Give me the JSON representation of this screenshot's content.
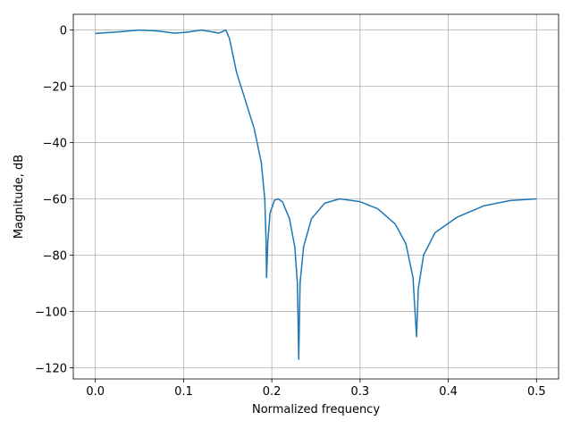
{
  "chart_data": {
    "type": "line",
    "xlabel": "Normalized frequency",
    "ylabel": "Magnitude, dB",
    "x": [
      0,
      0.02,
      0.05,
      0.07,
      0.09,
      0.105,
      0.12,
      0.13,
      0.14,
      0.148,
      0.152,
      0.16,
      0.17,
      0.18,
      0.188,
      0.192,
      0.1935,
      0.194,
      0.1955,
      0.198,
      0.203,
      0.207,
      0.212,
      0.22,
      0.226,
      0.229,
      0.2305,
      0.232,
      0.236,
      0.245,
      0.26,
      0.277,
      0.3,
      0.32,
      0.34,
      0.352,
      0.36,
      0.364,
      0.366,
      0.372,
      0.385,
      0.41,
      0.44,
      0.47,
      0.5
    ],
    "series": [
      {
        "color": "#1f77b4",
        "values": [
          -1.2,
          -0.8,
          0,
          -0.3,
          -1.1,
          -0.7,
          0,
          -0.5,
          -1.1,
          0,
          -3,
          -15,
          -25,
          -35,
          -47,
          -60,
          -75,
          -88,
          -75,
          -65,
          -60.5,
          -60,
          -61,
          -67,
          -77,
          -90,
          -117,
          -90,
          -77,
          -67,
          -61.5,
          -60,
          -61,
          -63.5,
          -69,
          -76,
          -88,
          -109,
          -92,
          -80,
          -72,
          -66.5,
          -62.5,
          -60.6,
          -60
        ]
      }
    ],
    "xlim": [
      -0.025,
      0.525
    ],
    "xticks": [
      {
        "value": 0,
        "label": "0.0"
      },
      {
        "value": 0.1,
        "label": "0.1"
      },
      {
        "value": 0.2,
        "label": "0.2"
      },
      {
        "value": 0.3,
        "label": "0.3"
      },
      {
        "value": 0.4,
        "label": "0.4"
      },
      {
        "value": 0.5,
        "label": "0.5"
      }
    ],
    "ylim": [
      -124,
      5.6
    ],
    "yticks": [
      0,
      {
        "value": -20,
        "label": "−20"
      },
      {
        "value": -40,
        "label": "−40"
      },
      {
        "value": -60,
        "label": "−60"
      },
      {
        "value": -80,
        "label": "−80"
      },
      {
        "value": -100,
        "label": "−100"
      },
      {
        "value": -120,
        "label": "−120"
      }
    ],
    "grid": true
  }
}
